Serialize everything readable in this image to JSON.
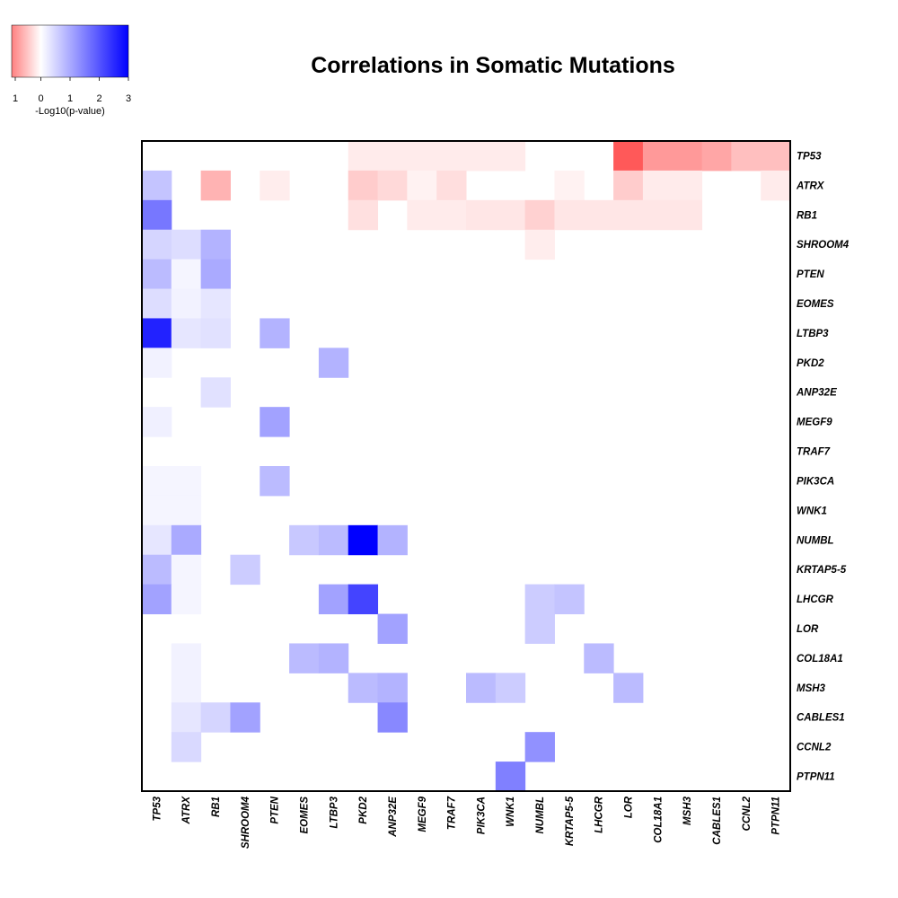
{
  "chart_data": {
    "type": "heatmap",
    "title": "Correlations in Somatic Mutations",
    "genes": [
      "TP53",
      "ATRX",
      "RB1",
      "SHROOM4",
      "PTEN",
      "EOMES",
      "LTBP3",
      "PKD2",
      "ANP32E",
      "MEGF9",
      "TRAF7",
      "PIK3CA",
      "WNK1",
      "NUMBL",
      "KRTAP5-5",
      "LHCGR",
      "LOR",
      "COL18A1",
      "MSH3",
      "CABLES1",
      "CCNL2",
      "PTPN11"
    ],
    "legend": {
      "label": "-Log10(p-value)",
      "ticks": [
        "1",
        "0",
        "1",
        "2",
        "3"
      ],
      "tick_values": [
        -1,
        0,
        1,
        2,
        3
      ],
      "colors": {
        "negative": "#ff0000",
        "zero": "#ffffff",
        "positive": "#0000ff"
      }
    },
    "value_range": [
      -1,
      3
    ],
    "matrix": [
      [
        0,
        0,
        0,
        0,
        0,
        0,
        0,
        -0.08,
        -0.08,
        -0.08,
        -0.08,
        -0.08,
        -0.08,
        0,
        0,
        0,
        -0.65,
        -0.4,
        -0.4,
        -0.35,
        -0.25,
        -0.25
      ],
      [
        0.7,
        0,
        -0.3,
        0,
        -0.07,
        0,
        0,
        -0.2,
        -0.15,
        -0.05,
        -0.13,
        0,
        0,
        0,
        -0.05,
        0,
        -0.2,
        -0.08,
        -0.08,
        0,
        0,
        -0.08
      ],
      [
        1.6,
        0,
        0,
        0,
        0,
        0,
        0,
        -0.12,
        0,
        -0.08,
        -0.08,
        -0.1,
        -0.1,
        -0.18,
        -0.1,
        -0.1,
        -0.1,
        -0.1,
        -0.1,
        0,
        0,
        0
      ],
      [
        0.5,
        0.4,
        0.9,
        0,
        0,
        0,
        0,
        0,
        0,
        0,
        0,
        0,
        0,
        -0.07,
        0,
        0,
        0,
        0,
        0,
        0,
        0,
        0
      ],
      [
        0.8,
        0.12,
        1.0,
        0,
        0,
        0,
        0,
        0,
        0,
        0,
        0,
        0,
        0,
        0,
        0,
        0,
        0,
        0,
        0,
        0,
        0,
        0
      ],
      [
        0.4,
        0.15,
        0.3,
        0,
        0,
        0,
        0,
        0,
        0,
        0,
        0,
        0,
        0,
        0,
        0,
        0,
        0,
        0,
        0,
        0,
        0,
        0
      ],
      [
        2.6,
        0.3,
        0.35,
        0,
        0.9,
        0,
        0,
        0,
        0,
        0,
        0,
        0,
        0,
        0,
        0,
        0,
        0,
        0,
        0,
        0,
        0,
        0
      ],
      [
        0.15,
        0,
        0,
        0,
        0,
        0,
        0.9,
        0,
        0,
        0,
        0,
        0,
        0,
        0,
        0,
        0,
        0,
        0,
        0,
        0,
        0,
        0
      ],
      [
        0,
        0,
        0.35,
        0,
        0,
        0,
        0,
        0,
        0,
        0,
        0,
        0,
        0,
        0,
        0,
        0,
        0,
        0,
        0,
        0,
        0,
        0
      ],
      [
        0.18,
        0,
        0,
        0,
        1.1,
        0,
        0,
        0,
        0,
        0,
        0,
        0,
        0,
        0,
        0,
        0,
        0,
        0,
        0,
        0,
        0,
        0
      ],
      [
        0,
        0,
        0,
        0,
        0,
        0,
        0,
        0,
        0,
        0,
        0,
        0,
        0,
        0,
        0,
        0,
        0,
        0,
        0,
        0,
        0,
        0
      ],
      [
        0.12,
        0.12,
        0,
        0,
        0.8,
        0,
        0,
        0,
        0,
        0,
        0,
        0,
        0,
        0,
        0,
        0,
        0,
        0,
        0,
        0,
        0,
        0
      ],
      [
        0.12,
        0.12,
        0,
        0,
        0,
        0,
        0,
        0,
        0,
        0,
        0,
        0,
        0,
        0,
        0,
        0,
        0,
        0,
        0,
        0,
        0,
        0
      ],
      [
        0.3,
        1.0,
        0,
        0,
        0,
        0.65,
        0.8,
        3.0,
        0.9,
        0,
        0,
        0,
        0,
        0,
        0,
        0,
        0,
        0,
        0,
        0,
        0,
        0
      ],
      [
        0.8,
        0.12,
        0,
        0.6,
        0,
        0,
        0,
        0,
        0,
        0,
        0,
        0,
        0,
        0,
        0,
        0,
        0,
        0,
        0,
        0,
        0,
        0
      ],
      [
        1.1,
        0.12,
        0,
        0,
        0,
        0,
        1.1,
        2.2,
        0,
        0,
        0,
        0,
        0,
        0.6,
        0.7,
        0,
        0,
        0,
        0,
        0,
        0,
        0
      ],
      [
        0,
        0,
        0,
        0,
        0,
        0,
        0,
        0,
        1.1,
        0,
        0,
        0,
        0,
        0.6,
        0,
        0,
        0,
        0,
        0,
        0,
        0,
        0
      ],
      [
        0,
        0.15,
        0,
        0,
        0,
        0.8,
        0.9,
        0,
        0,
        0,
        0,
        0,
        0,
        0,
        0,
        0.8,
        0,
        0,
        0,
        0,
        0,
        0
      ],
      [
        0,
        0.15,
        0,
        0,
        0,
        0,
        0,
        0.8,
        0.9,
        0,
        0,
        0.8,
        0.6,
        0,
        0,
        0,
        0.8,
        0,
        0,
        0,
        0,
        0
      ],
      [
        0,
        0.3,
        0.5,
        1.1,
        0,
        0,
        0,
        0,
        1.4,
        0,
        0,
        0,
        0,
        0,
        0,
        0,
        0,
        0,
        0,
        0,
        0,
        0
      ],
      [
        0,
        0.45,
        0,
        0,
        0,
        0,
        0,
        0,
        0,
        0,
        0,
        0,
        0,
        1.3,
        0,
        0,
        0,
        0,
        0,
        0,
        0,
        0
      ],
      [
        0,
        0,
        0,
        0,
        0,
        0,
        0,
        0,
        0,
        0,
        0,
        0,
        1.5,
        0,
        0,
        0,
        0,
        0,
        0,
        0,
        0,
        0
      ]
    ]
  }
}
